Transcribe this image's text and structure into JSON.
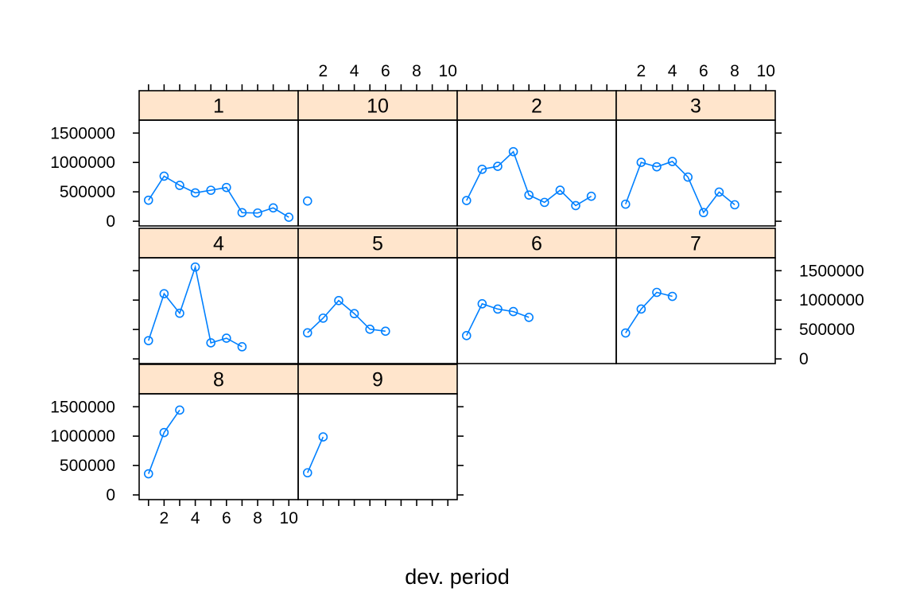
{
  "chart_data": {
    "type": "line",
    "layout": "lattice trellis, 4 columns x 3 rows, panels ordered 1,10,2,3 / 4,5,6,7 / 8,9",
    "xlabel": "dev. period",
    "ylabel": "",
    "xlim": [
      0.4,
      10.6
    ],
    "ylim": [
      -80000,
      1720000
    ],
    "x_ticks": [
      2,
      4,
      6,
      8,
      10
    ],
    "x_tick_labels": [
      "2",
      "4",
      "6",
      "8",
      "10"
    ],
    "y_ticks": [
      0,
      500000,
      1000000,
      1500000
    ],
    "y_tick_labels": [
      "0",
      "500000",
      "1000000",
      "1500000"
    ],
    "line_color": "#0080ff",
    "strip_color": "#ffe5cc",
    "marker": "open circle",
    "panels": [
      {
        "label": "1",
        "x": [
          1,
          2,
          3,
          4,
          5,
          6,
          7,
          8,
          9,
          10
        ],
        "values": [
          357848,
          766940,
          610542,
          482940,
          527326,
          574398,
          146342,
          139950,
          227229,
          67948
        ]
      },
      {
        "label": "10",
        "x": [
          1
        ],
        "values": [
          344014
        ]
      },
      {
        "label": "2",
        "x": [
          1,
          2,
          3,
          4,
          5,
          6,
          7,
          8,
          9
        ],
        "values": [
          352118,
          884021,
          933894,
          1183289,
          445745,
          320996,
          527804,
          266172,
          425046
        ]
      },
      {
        "label": "3",
        "x": [
          1,
          2,
          3,
          4,
          5,
          6,
          7,
          8
        ],
        "values": [
          290507,
          1001799,
          926219,
          1016654,
          750816,
          146923,
          495992,
          280405
        ]
      },
      {
        "label": "4",
        "x": [
          1,
          2,
          3,
          4,
          5,
          6,
          7
        ],
        "values": [
          310608,
          1108250,
          776189,
          1562400,
          272482,
          352053,
          206286
        ]
      },
      {
        "label": "5",
        "x": [
          1,
          2,
          3,
          4,
          5,
          6
        ],
        "values": [
          443160,
          693190,
          991983,
          769488,
          504851,
          470639
        ]
      },
      {
        "label": "6",
        "x": [
          1,
          2,
          3,
          4,
          5
        ],
        "values": [
          396132,
          937085,
          847498,
          805037,
          705960
        ]
      },
      {
        "label": "7",
        "x": [
          1,
          2,
          3,
          4
        ],
        "values": [
          440832,
          847631,
          1131398,
          1063269
        ]
      },
      {
        "label": "8",
        "x": [
          1,
          2,
          3
        ],
        "values": [
          359480,
          1061648,
          1443370
        ]
      },
      {
        "label": "9",
        "x": [
          1,
          2
        ],
        "values": [
          376686,
          986608
        ]
      }
    ]
  }
}
